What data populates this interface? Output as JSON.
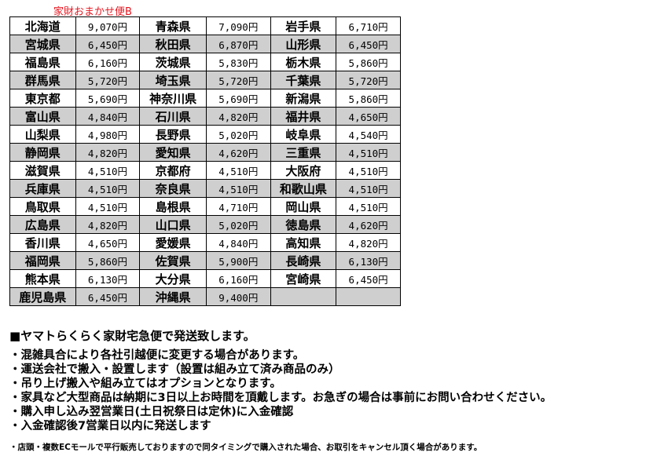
{
  "title": "家財おまかせ便B",
  "rows": [
    [
      [
        "北海道",
        "9,070円"
      ],
      [
        "青森県",
        "7,090円"
      ],
      [
        "岩手県",
        "6,710円"
      ]
    ],
    [
      [
        "宮城県",
        "6,450円"
      ],
      [
        "秋田県",
        "6,870円"
      ],
      [
        "山形県",
        "6,450円"
      ]
    ],
    [
      [
        "福島県",
        "6,160円"
      ],
      [
        "茨城県",
        "5,830円"
      ],
      [
        "栃木県",
        "5,860円"
      ]
    ],
    [
      [
        "群馬県",
        "5,720円"
      ],
      [
        "埼玉県",
        "5,720円"
      ],
      [
        "千葉県",
        "5,720円"
      ]
    ],
    [
      [
        "東京都",
        "5,690円"
      ],
      [
        "神奈川県",
        "5,690円"
      ],
      [
        "新潟県",
        "5,860円"
      ]
    ],
    [
      [
        "富山県",
        "4,840円"
      ],
      [
        "石川県",
        "4,820円"
      ],
      [
        "福井県",
        "4,650円"
      ]
    ],
    [
      [
        "山梨県",
        "4,980円"
      ],
      [
        "長野県",
        "5,020円"
      ],
      [
        "岐阜県",
        "4,540円"
      ]
    ],
    [
      [
        "静岡県",
        "4,820円"
      ],
      [
        "愛知県",
        "4,620円"
      ],
      [
        "三重県",
        "4,510円"
      ]
    ],
    [
      [
        "滋賀県",
        "4,510円"
      ],
      [
        "京都府",
        "4,510円"
      ],
      [
        "大阪府",
        "4,510円"
      ]
    ],
    [
      [
        "兵庫県",
        "4,510円"
      ],
      [
        "奈良県",
        "4,510円"
      ],
      [
        "和歌山県",
        "4,510円"
      ]
    ],
    [
      [
        "鳥取県",
        "4,510円"
      ],
      [
        "島根県",
        "4,710円"
      ],
      [
        "岡山県",
        "4,510円"
      ]
    ],
    [
      [
        "広島県",
        "4,820円"
      ],
      [
        "山口県",
        "5,020円"
      ],
      [
        "徳島県",
        "4,620円"
      ]
    ],
    [
      [
        "香川県",
        "4,650円"
      ],
      [
        "愛媛県",
        "4,840円"
      ],
      [
        "高知県",
        "4,820円"
      ]
    ],
    [
      [
        "福岡県",
        "5,860円"
      ],
      [
        "佐賀県",
        "5,900円"
      ],
      [
        "長崎県",
        "6,130円"
      ]
    ],
    [
      [
        "熊本県",
        "6,130円"
      ],
      [
        "大分県",
        "6,160円"
      ],
      [
        "宮崎県",
        "6,450円"
      ]
    ],
    [
      [
        "鹿児島県",
        "6,450円"
      ],
      [
        "沖縄県",
        "9,400円"
      ],
      [
        "",
        ""
      ]
    ]
  ],
  "notes": {
    "heading": "■ヤマトらくらく家財宅急便で発送致します。",
    "bullets": [
      "・混雑具合により各社引越便に変更する場合があります。",
      "・運送会社で搬入・設置します（設置は組み立て済み商品のみ）",
      "・吊り上げ搬入や組み立てはオプションとなります。",
      "・家具など大型商品は納期に3日以上お時間を頂戴します。お急ぎの場合は事前にお問い合わせください。",
      "・購入申し込み翌営業日(土日祝祭日は定休)に入金確認",
      "・入金確認後7営業日以内に発送します"
    ],
    "small": "・店頭・複数ECモールで平行販売しておりますので同タイミングで購入された場合、お取引をキャンセル頂く場合があります。"
  },
  "colors": {
    "title": "#e8141e",
    "row_alt": "#cfcfcf"
  }
}
